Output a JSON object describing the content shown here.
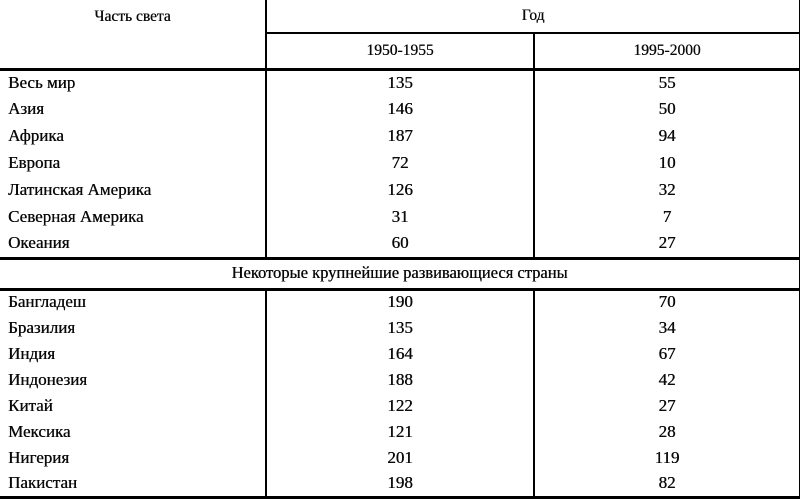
{
  "table": {
    "header": {
      "region_label": "Часть света",
      "year_label": "Год",
      "period1": "1950-1955",
      "period2": "1995-2000"
    },
    "section_title": "Некоторые крупнейшие развивающиеся страны",
    "continents": [
      {
        "name": "Весь мир",
        "v1": "135",
        "v2": "55"
      },
      {
        "name": "Азия",
        "v1": "146",
        "v2": "50"
      },
      {
        "name": "Африка",
        "v1": "187",
        "v2": "94"
      },
      {
        "name": "Европа",
        "v1": "72",
        "v2": "10"
      },
      {
        "name": "Латинская Америка",
        "v1": "126",
        "v2": "32"
      },
      {
        "name": "Северная Америка",
        "v1": "31",
        "v2": "7"
      },
      {
        "name": "Океания",
        "v1": "60",
        "v2": "27"
      }
    ],
    "countries": [
      {
        "name": "Бангладеш",
        "v1": "190",
        "v2": "70"
      },
      {
        "name": "Бразилия",
        "v1": "135",
        "v2": "34"
      },
      {
        "name": "Индия",
        "v1": "164",
        "v2": "67"
      },
      {
        "name": "Индонезия",
        "v1": "188",
        "v2": "42"
      },
      {
        "name": "Китай",
        "v1": "122",
        "v2": "27"
      },
      {
        "name": "Мексика",
        "v1": "121",
        "v2": "28"
      },
      {
        "name": "Нигерия",
        "v1": "201",
        "v2": "119"
      },
      {
        "name": "Пакистан",
        "v1": "198",
        "v2": "82"
      }
    ],
    "colors": {
      "ink": "#000000",
      "paper": "#ffffff"
    }
  }
}
